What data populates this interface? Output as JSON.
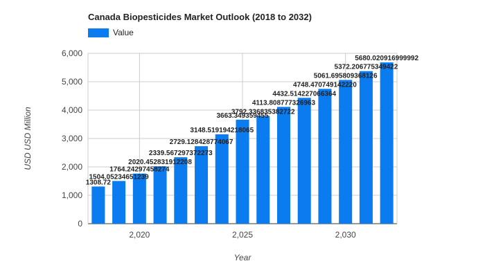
{
  "chart_data": {
    "type": "bar",
    "title": "Canada Biopesticides Market Outlook (2018 to 2032)",
    "xlabel": "Year",
    "ylabel": "USD USD Million",
    "ylim": [
      0,
      6000
    ],
    "yticks": [
      "0",
      "1,000",
      "2,000",
      "3,000",
      "4,000",
      "5,000",
      "6,000"
    ],
    "xticks": [
      "2,020",
      "2,025",
      "2,030"
    ],
    "grid": true,
    "legend_position": "top-left",
    "bar_color": "#0a7cf0",
    "categories": [
      2018,
      2019,
      2020,
      2021,
      2022,
      2023,
      2024,
      2025,
      2026,
      2027,
      2028,
      2029,
      2030,
      2031,
      2032
    ],
    "series": [
      {
        "name": "Value",
        "values": [
          1308.72,
          1504.05234651239,
          1764.24297458274,
          2020.452831912208,
          2339.567297372273,
          2729.128428774067,
          3148.519194218065,
          3663.349359455,
          3792.336835382722,
          4113.808777326963,
          4432.514227066364,
          4748.47074914222,
          5061.695809368126,
          5372.206775349422,
          5680.020916999992
        ],
        "labels": [
          "1308.72",
          "1504.05234651239",
          "1764.24297458274",
          "2020.452831912208",
          "2339.567297372273",
          "2729.128428774067",
          "3148.519194218065",
          "3663.349359455",
          "3792.336835382722",
          "4113.808777326963",
          "4432.514227066364",
          "4748.470749142220",
          "5061.695809368126",
          "5372.206775349422",
          "5680.020916999992"
        ]
      }
    ]
  }
}
